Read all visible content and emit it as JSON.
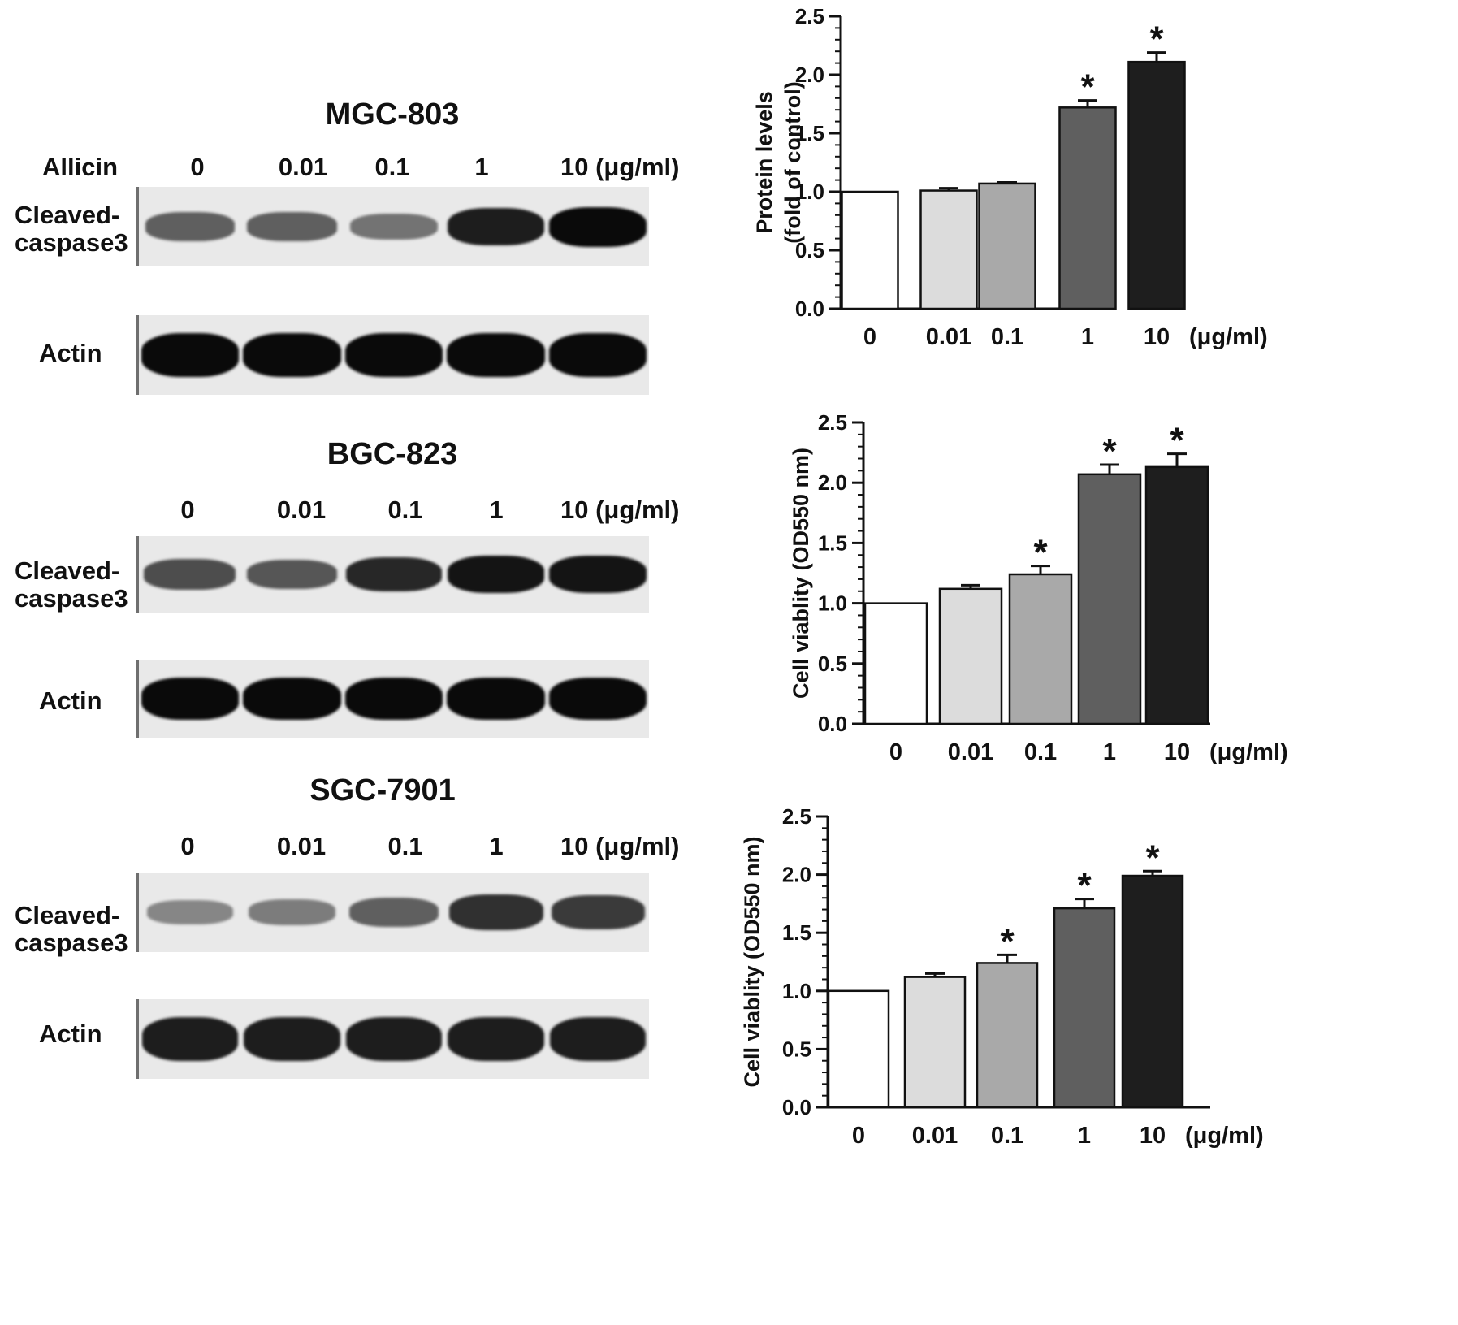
{
  "blots": [
    {
      "title": "MGC-803",
      "treatment_label": "Allicin",
      "lanes": [
        "0",
        "0.01",
        "0.1",
        "1",
        "10"
      ],
      "unit": "(μg/ml)",
      "cleaved_label_1": "Cleaved-",
      "cleaved_label_2": "caspase3",
      "actin_label": "Actin",
      "cleaved_intensity": [
        0.55,
        0.55,
        0.45,
        0.9,
        1.0
      ],
      "actin_intensity": [
        1.0,
        1.0,
        1.0,
        1.0,
        1.0
      ]
    },
    {
      "title": "BGC-823",
      "treatment_label": "",
      "lanes": [
        "0",
        "0.01",
        "0.1",
        "1",
        "10"
      ],
      "unit": "(μg/ml)",
      "cleaved_label_1": "Cleaved-",
      "cleaved_label_2": "caspase3",
      "actin_label": "Actin",
      "cleaved_intensity": [
        0.65,
        0.6,
        0.85,
        0.95,
        0.95
      ],
      "actin_intensity": [
        1.0,
        1.0,
        1.0,
        1.0,
        1.0
      ]
    },
    {
      "title": "SGC-7901",
      "treatment_label": "",
      "lanes": [
        "0",
        "0.01",
        "0.1",
        "1",
        "10"
      ],
      "unit": "(μg/ml)",
      "cleaved_label_1": "Cleaved-",
      "cleaved_label_2": "caspase3",
      "actin_label": "Actin",
      "cleaved_intensity": [
        0.35,
        0.4,
        0.55,
        0.8,
        0.75
      ],
      "actin_intensity": [
        0.9,
        0.9,
        0.9,
        0.9,
        0.9
      ]
    }
  ],
  "chart_data": [
    {
      "type": "bar",
      "categories": [
        "0",
        "0.01",
        "0.1",
        "1",
        "10"
      ],
      "unit_label": "(μg/ml)",
      "ylabel_line1": "Protein levels",
      "ylabel_line2": "(fold of control)",
      "ylim": [
        0,
        2.5
      ],
      "yticks": [
        "0.0",
        "0.5",
        "1.0",
        "1.5",
        "2.0",
        "2.5"
      ],
      "values": [
        1.0,
        1.01,
        1.07,
        1.72,
        2.11
      ],
      "errors": [
        0.0,
        0.02,
        0.01,
        0.06,
        0.08
      ],
      "significant": [
        false,
        false,
        false,
        true,
        true
      ],
      "bar_colors": [
        "#ffffff",
        "#dcdcdc",
        "#a9a9a9",
        "#5f5f5f",
        "#1e1e1e"
      ]
    },
    {
      "type": "bar",
      "categories": [
        "0",
        "0.01",
        "0.1",
        "1",
        "10"
      ],
      "unit_label": "(μg/ml)",
      "ylabel_line1": "Cell viablity (OD550 nm)",
      "ylabel_line2": "",
      "ylim": [
        0,
        2.5
      ],
      "yticks": [
        "0.0",
        "0.5",
        "1.0",
        "1.5",
        "2.0",
        "2.5"
      ],
      "values": [
        1.0,
        1.12,
        1.24,
        2.07,
        2.13
      ],
      "errors": [
        0.0,
        0.03,
        0.07,
        0.08,
        0.11
      ],
      "significant": [
        false,
        false,
        true,
        true,
        true
      ],
      "bar_colors": [
        "#ffffff",
        "#dcdcdc",
        "#a9a9a9",
        "#5f5f5f",
        "#1e1e1e"
      ]
    },
    {
      "type": "bar",
      "categories": [
        "0",
        "0.01",
        "0.1",
        "1",
        "10"
      ],
      "unit_label": "(μg/ml)",
      "ylabel_line1": "Cell viablity (OD550 nm)",
      "ylabel_line2": "",
      "ylim": [
        0,
        2.5
      ],
      "yticks": [
        "0.0",
        "0.5",
        "1.0",
        "1.5",
        "2.0",
        "2.5"
      ],
      "values": [
        1.0,
        1.12,
        1.24,
        1.71,
        1.99
      ],
      "errors": [
        0.0,
        0.03,
        0.07,
        0.08,
        0.04
      ],
      "significant": [
        false,
        false,
        true,
        true,
        true
      ],
      "bar_colors": [
        "#ffffff",
        "#dcdcdc",
        "#a9a9a9",
        "#5f5f5f",
        "#1e1e1e"
      ]
    }
  ],
  "significance_marker": "*"
}
